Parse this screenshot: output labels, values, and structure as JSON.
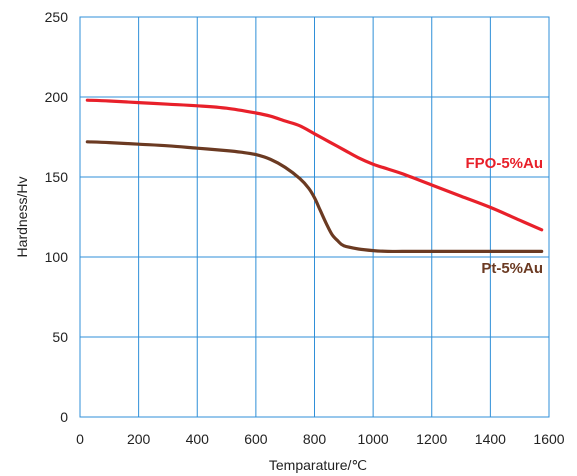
{
  "chart_data": {
    "type": "line",
    "title": "",
    "xlabel": "Temparature/℃",
    "ylabel": "Hardness/Hv",
    "xlim": [
      0,
      1600
    ],
    "ylim": [
      0,
      250
    ],
    "xticks": [
      0,
      200,
      400,
      600,
      800,
      1000,
      1200,
      1400,
      1600
    ],
    "yticks": [
      0,
      50,
      100,
      150,
      200,
      250
    ],
    "grid": true,
    "grid_color": "#2f8fd8",
    "series": [
      {
        "name": "FPO-5%Au",
        "color": "#e8202a",
        "x": [
          25,
          100,
          200,
          300,
          400,
          500,
          600,
          650,
          700,
          750,
          800,
          850,
          900,
          950,
          1000,
          1050,
          1100,
          1200,
          1300,
          1400,
          1500,
          1575
        ],
        "y": [
          198,
          197.5,
          196.5,
          195.5,
          194.5,
          193,
          190,
          188,
          185,
          182,
          177,
          172,
          167,
          162,
          158,
          155,
          152,
          145,
          138,
          131,
          123,
          117
        ]
      },
      {
        "name": "Pt-5%Au",
        "color": "#6b3a22",
        "x": [
          25,
          100,
          200,
          300,
          400,
          500,
          550,
          600,
          650,
          700,
          750,
          780,
          800,
          820,
          840,
          860,
          880,
          900,
          950,
          1000,
          1050,
          1100,
          1200,
          1300,
          1400,
          1500,
          1575
        ],
        "y": [
          172,
          171.5,
          170.5,
          169.5,
          168,
          166.5,
          165.5,
          164,
          161,
          156,
          149,
          143,
          137,
          129,
          121,
          114,
          110,
          107,
          105,
          104,
          103.5,
          103.5,
          103.5,
          103.5,
          103.5,
          103.5,
          103.5
        ]
      }
    ]
  }
}
